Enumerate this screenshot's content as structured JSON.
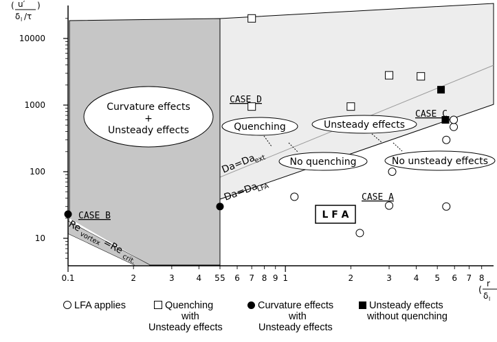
{
  "y_axis_label": {
    "num": "u′",
    "den": "δ",
    "den_sub": "l",
    "den_tail": "/τ"
  },
  "x_axis_label": {
    "num": "r",
    "den": "δ",
    "den_sub": "l"
  },
  "y_ticks": [
    "10000",
    "1000",
    "100",
    "10"
  ],
  "x_ticks": [
    "0.1",
    "2",
    "3",
    "4",
    "5",
    "5",
    "6",
    "7",
    "8",
    "9",
    "1",
    "2",
    "3",
    "4",
    "5",
    "6",
    "7",
    "8"
  ],
  "regions": {
    "curvature": {
      "line1": "Curvature effects",
      "line2": "+",
      "line3": "Unsteady effects"
    },
    "quenching": "Quenching",
    "unsteady": "Unsteady effects",
    "no_quenching": "No quenching",
    "no_unsteady": "No unsteady effects",
    "lfa": "L F A"
  },
  "cases": {
    "a": "CASE A",
    "b": "CASE B",
    "c": "CASE C",
    "d": "CASE D"
  },
  "lines": {
    "da_ext": {
      "main": "Da=Da",
      "sub": "ext"
    },
    "da_lfa": {
      "main": "Da=Da",
      "sub": "LFA"
    },
    "re_crit": {
      "a": "Re",
      "a_sub": "vortex",
      "b": "=Re",
      "b_sub": "crit."
    }
  },
  "legend": {
    "lfa": "LFA applies",
    "quench_1": "Quenching",
    "quench_2": "with",
    "quench_3": "Unsteady effects",
    "curv_1": "Curvature effects",
    "curv_2": "with",
    "curv_3": "Unsteady effects",
    "unst_1": "Unsteady effects",
    "unst_2": "without quenching"
  },
  "chart_data": {
    "type": "scatter",
    "log_x": true,
    "log_y": true,
    "xlim": [
      0.09,
      9.5
    ],
    "ylim": [
      4.5,
      40000
    ],
    "series": [
      {
        "name": "LFA applies",
        "marker": "open-circle",
        "points": [
          [
            1.1,
            42
          ],
          [
            2.2,
            12
          ],
          [
            3.0,
            31
          ],
          [
            3.1,
            100
          ],
          [
            5.5,
            30
          ],
          [
            5.5,
            300
          ],
          [
            5.95,
            470
          ],
          [
            5.95,
            600
          ]
        ]
      },
      {
        "name": "Quenching with Unsteady effects",
        "marker": "open-square",
        "points": [
          [
            0.7,
            20000
          ],
          [
            0.7,
            950
          ],
          [
            2.0,
            950
          ],
          [
            3.0,
            2800
          ],
          [
            4.2,
            2700
          ]
        ]
      },
      {
        "name": "Curvature effects with Unsteady effects",
        "marker": "filled-circle",
        "points": [
          [
            0.1,
            23
          ],
          [
            0.5,
            30
          ]
        ]
      },
      {
        "name": "Unsteady effects without quenching",
        "marker": "filled-square",
        "points": [
          [
            5.2,
            1700
          ],
          [
            5.45,
            600
          ]
        ]
      }
    ]
  }
}
